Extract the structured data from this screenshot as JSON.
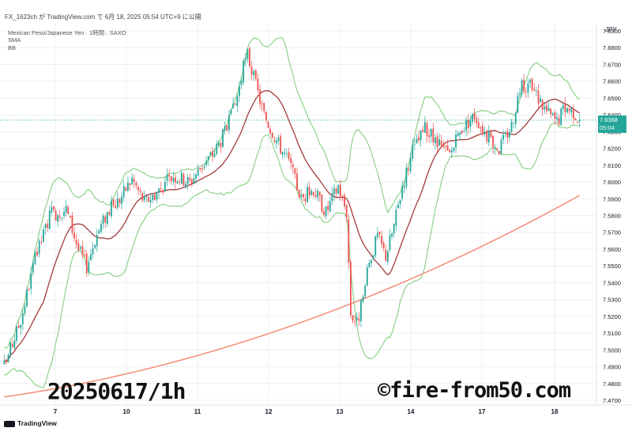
{
  "header": {
    "caption": "FX_1623ch が TradingView.com で 6月 18, 2025 05:54 UTC+9 に公開",
    "symbol_line": "Mexican Peso/Japanese Yen · 1時間 · SAXO",
    "indicator_sma": "SMA",
    "indicator_bb": "BB"
  },
  "currency_label": "JPY",
  "last_price": {
    "value": "7.6368",
    "time": "05:04"
  },
  "footer": {
    "brand": "TradingView"
  },
  "watermarks": {
    "left": "20250617/1h",
    "right": "©fire-from50.com"
  },
  "colors": {
    "up": "#26a69a",
    "down": "#ef5350",
    "sma_short": "#a33a3a",
    "sma_long": "#f48b78",
    "bands": "#8fd18a",
    "grid": "#eef0f3",
    "last_line": "#26a69a"
  },
  "chart_data": {
    "type": "line",
    "ylim": [
      7.47,
      7.695
    ],
    "yticks": [
      "7.6900",
      "7.6800",
      "7.6700",
      "7.6600",
      "7.6500",
      "7.6400",
      "7.6300",
      "7.6200",
      "7.6100",
      "7.6000",
      "7.5900",
      "7.5800",
      "7.5700",
      "7.5600",
      "7.5500",
      "7.5400",
      "7.5300",
      "7.5200",
      "7.5100",
      "7.5000",
      "7.4900",
      "7.4800",
      "7.4700"
    ],
    "xticks": [
      "7",
      "10",
      "11",
      "12",
      "13",
      "14",
      "17",
      "18"
    ],
    "anchors": [
      [
        0,
        7.49
      ],
      [
        8,
        7.518
      ],
      [
        15,
        7.554
      ],
      [
        22,
        7.58
      ],
      [
        30,
        7.584
      ],
      [
        36,
        7.56
      ],
      [
        40,
        7.55
      ],
      [
        44,
        7.566
      ],
      [
        50,
        7.582
      ],
      [
        56,
        7.59
      ],
      [
        62,
        7.602
      ],
      [
        68,
        7.588
      ],
      [
        74,
        7.594
      ],
      [
        82,
        7.604
      ],
      [
        90,
        7.6
      ],
      [
        96,
        7.61
      ],
      [
        102,
        7.618
      ],
      [
        108,
        7.632
      ],
      [
        112,
        7.646
      ],
      [
        116,
        7.668
      ],
      [
        118,
        7.676
      ],
      [
        121,
        7.662
      ],
      [
        126,
        7.64
      ],
      [
        132,
        7.625
      ],
      [
        138,
        7.612
      ],
      [
        144,
        7.59
      ],
      [
        150,
        7.596
      ],
      [
        156,
        7.582
      ],
      [
        162,
        7.598
      ],
      [
        166,
        7.582
      ],
      [
        168,
        7.522
      ],
      [
        171,
        7.516
      ],
      [
        174,
        7.53
      ],
      [
        177,
        7.552
      ],
      [
        181,
        7.568
      ],
      [
        185,
        7.556
      ],
      [
        189,
        7.574
      ],
      [
        193,
        7.598
      ],
      [
        198,
        7.618
      ],
      [
        204,
        7.632
      ],
      [
        210,
        7.622
      ],
      [
        216,
        7.616
      ],
      [
        222,
        7.632
      ],
      [
        228,
        7.64
      ],
      [
        234,
        7.628
      ],
      [
        240,
        7.62
      ],
      [
        246,
        7.634
      ],
      [
        250,
        7.656
      ],
      [
        254,
        7.658
      ],
      [
        258,
        7.652
      ],
      [
        263,
        7.642
      ],
      [
        268,
        7.636
      ],
      [
        272,
        7.645
      ],
      [
        276,
        7.642
      ],
      [
        279,
        7.6368
      ]
    ],
    "sma_short_period": 20,
    "sma_long_period": 200,
    "bb_multiplier": 2,
    "sma_long_start": 7.472,
    "sma_long_end": 7.592
  }
}
